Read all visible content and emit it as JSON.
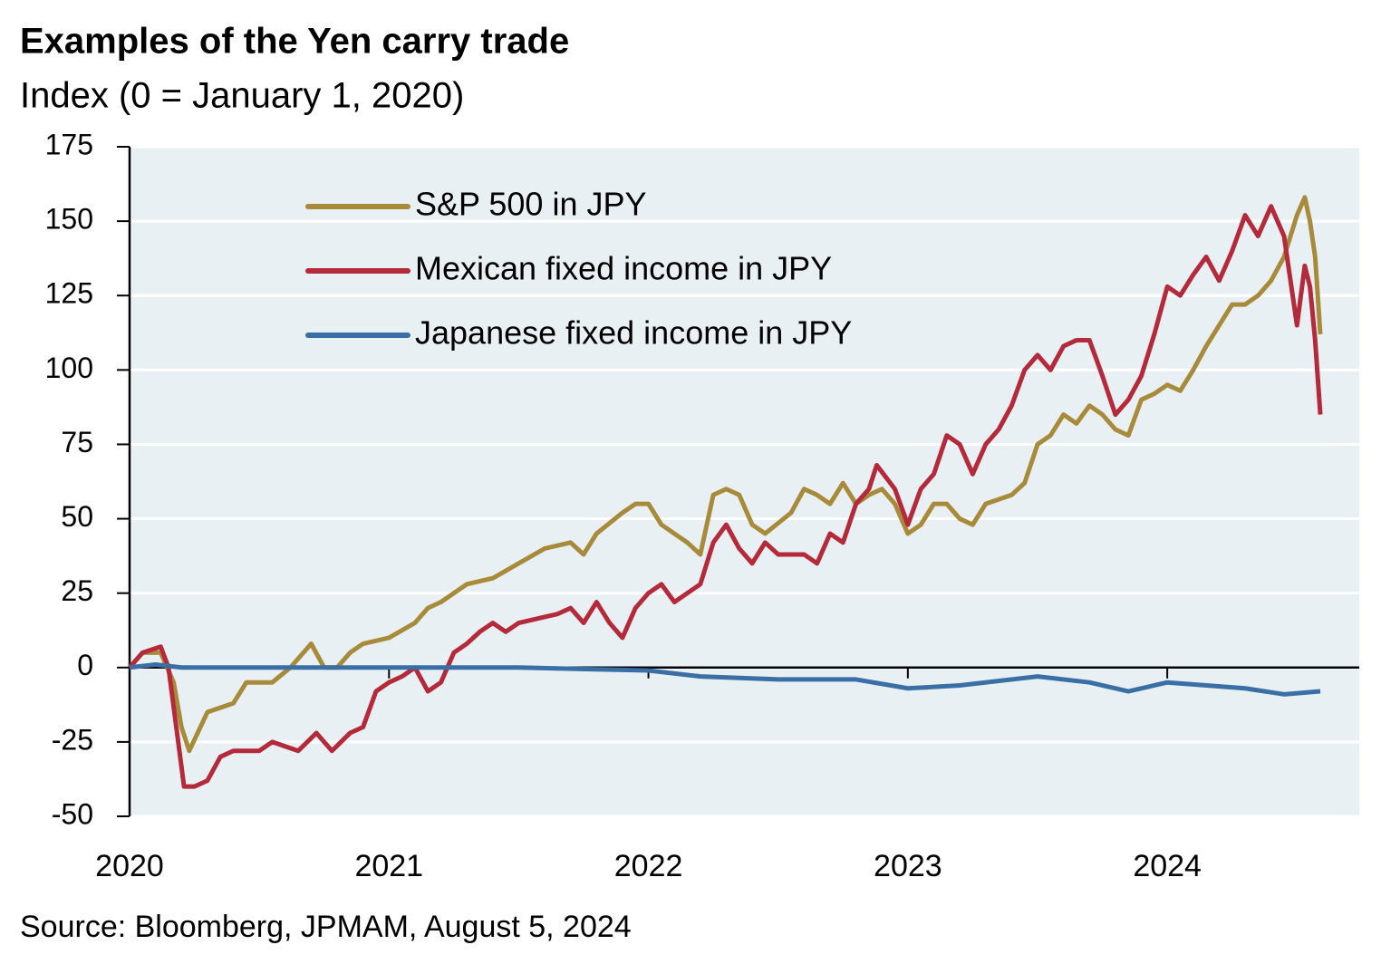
{
  "chart_data": {
    "type": "line",
    "title": "Examples of the Yen carry trade",
    "subtitle": "Index (0 = January 1, 2020)",
    "source": "Source: Bloomberg, JPMAM, August 5, 2024",
    "xlim": [
      2020,
      2024.74
    ],
    "xticks": [
      2020,
      2021,
      2022,
      2023,
      2024
    ],
    "ylim": [
      -50,
      175
    ],
    "yticks": [
      -50,
      -25,
      0,
      25,
      50,
      75,
      100,
      125,
      150,
      175
    ],
    "grid": true,
    "legend": "upper-left",
    "series": [
      {
        "name": "S&P 500 in JPY",
        "color": "#a88b3a",
        "x": [
          2020.0,
          2020.05,
          2020.12,
          2020.17,
          2020.2,
          2020.23,
          2020.3,
          2020.4,
          2020.45,
          2020.55,
          2020.62,
          2020.67,
          2020.7,
          2020.75,
          2020.8,
          2020.85,
          2020.9,
          2021.0,
          2021.1,
          2021.15,
          2021.2,
          2021.3,
          2021.4,
          2021.5,
          2021.6,
          2021.7,
          2021.75,
          2021.8,
          2021.9,
          2021.95,
          2022.0,
          2022.05,
          2022.15,
          2022.2,
          2022.25,
          2022.3,
          2022.35,
          2022.4,
          2022.45,
          2022.55,
          2022.6,
          2022.65,
          2022.7,
          2022.75,
          2022.8,
          2022.85,
          2022.9,
          2022.95,
          2023.0,
          2023.05,
          2023.1,
          2023.15,
          2023.2,
          2023.25,
          2023.3,
          2023.4,
          2023.45,
          2023.5,
          2023.55,
          2023.6,
          2023.65,
          2023.7,
          2023.75,
          2023.8,
          2023.85,
          2023.9,
          2023.95,
          2024.0,
          2024.05,
          2024.1,
          2024.15,
          2024.2,
          2024.25,
          2024.3,
          2024.35,
          2024.4,
          2024.45,
          2024.5,
          2024.53,
          2024.55,
          2024.57,
          2024.59
        ],
        "values": [
          0,
          5,
          5,
          -5,
          -20,
          -28,
          -15,
          -12,
          -5,
          -5,
          0,
          5,
          8,
          0,
          0,
          5,
          8,
          10,
          15,
          20,
          22,
          28,
          30,
          35,
          40,
          42,
          38,
          45,
          52,
          55,
          55,
          48,
          42,
          38,
          58,
          60,
          58,
          48,
          45,
          52,
          60,
          58,
          55,
          62,
          55,
          58,
          60,
          55,
          45,
          48,
          55,
          55,
          50,
          48,
          55,
          58,
          62,
          75,
          78,
          85,
          82,
          88,
          85,
          80,
          78,
          90,
          92,
          95,
          93,
          100,
          108,
          115,
          122,
          122,
          125,
          130,
          138,
          152,
          158,
          150,
          138,
          112
        ]
      },
      {
        "name": "Mexican fixed income in JPY",
        "color": "#b42a3a",
        "x": [
          2020.0,
          2020.05,
          2020.12,
          2020.15,
          2020.18,
          2020.21,
          2020.25,
          2020.3,
          2020.35,
          2020.4,
          2020.5,
          2020.55,
          2020.65,
          2020.72,
          2020.78,
          2020.85,
          2020.9,
          2020.95,
          2021.0,
          2021.05,
          2021.1,
          2021.15,
          2021.2,
          2021.25,
          2021.3,
          2021.35,
          2021.4,
          2021.45,
          2021.5,
          2021.6,
          2021.65,
          2021.7,
          2021.75,
          2021.8,
          2021.85,
          2021.9,
          2021.95,
          2022.0,
          2022.05,
          2022.1,
          2022.15,
          2022.2,
          2022.25,
          2022.3,
          2022.35,
          2022.4,
          2022.45,
          2022.5,
          2022.6,
          2022.65,
          2022.7,
          2022.75,
          2022.8,
          2022.85,
          2022.88,
          2022.95,
          2023.0,
          2023.05,
          2023.1,
          2023.15,
          2023.2,
          2023.25,
          2023.3,
          2023.35,
          2023.4,
          2023.45,
          2023.5,
          2023.55,
          2023.6,
          2023.65,
          2023.7,
          2023.75,
          2023.8,
          2023.85,
          2023.9,
          2023.95,
          2024.0,
          2024.05,
          2024.1,
          2024.15,
          2024.2,
          2024.25,
          2024.3,
          2024.35,
          2024.4,
          2024.45,
          2024.5,
          2024.53,
          2024.55,
          2024.57,
          2024.59
        ],
        "values": [
          0,
          5,
          7,
          0,
          -20,
          -40,
          -40,
          -38,
          -30,
          -28,
          -28,
          -25,
          -28,
          -22,
          -28,
          -22,
          -20,
          -8,
          -5,
          -3,
          0,
          -8,
          -5,
          5,
          8,
          12,
          15,
          12,
          15,
          17,
          18,
          20,
          15,
          22,
          15,
          10,
          20,
          25,
          28,
          22,
          25,
          28,
          42,
          48,
          40,
          35,
          42,
          38,
          38,
          35,
          45,
          42,
          55,
          60,
          68,
          60,
          48,
          60,
          65,
          78,
          75,
          65,
          75,
          80,
          88,
          100,
          105,
          100,
          108,
          110,
          110,
          98,
          85,
          90,
          98,
          112,
          128,
          125,
          132,
          138,
          130,
          140,
          152,
          145,
          155,
          145,
          115,
          135,
          128,
          110,
          85
        ]
      },
      {
        "name": "Japanese fixed income in JPY",
        "color": "#3a6fa6",
        "x": [
          2020.0,
          2020.1,
          2020.2,
          2020.5,
          2021.0,
          2021.5,
          2022.0,
          2022.2,
          2022.5,
          2022.8,
          2023.0,
          2023.2,
          2023.5,
          2023.7,
          2023.85,
          2024.0,
          2024.3,
          2024.45,
          2024.59
        ],
        "values": [
          0,
          1,
          0,
          0,
          0,
          0,
          -1,
          -3,
          -4,
          -4,
          -7,
          -6,
          -3,
          -5,
          -8,
          -5,
          -7,
          -9,
          -8
        ]
      }
    ]
  }
}
